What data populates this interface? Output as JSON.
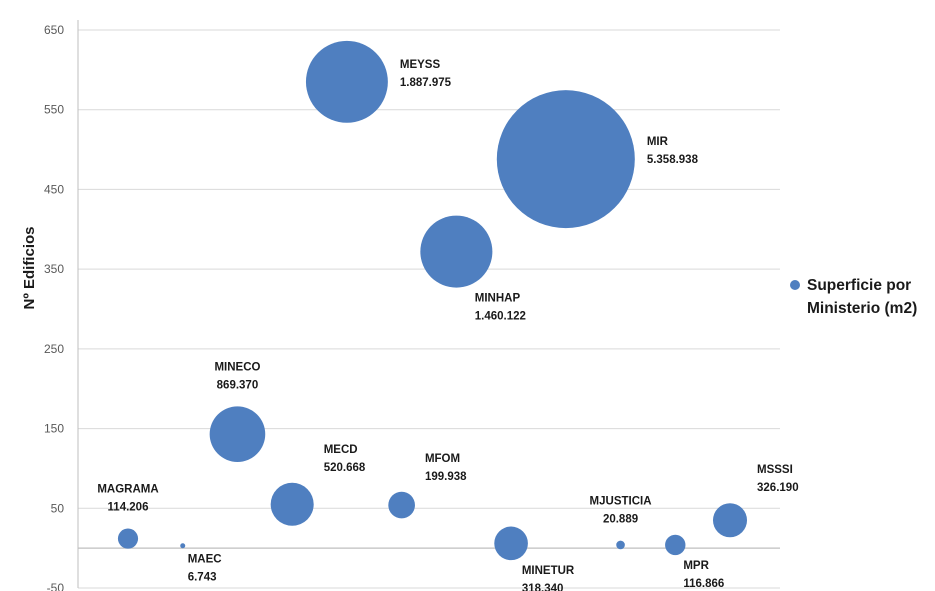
{
  "colors": {
    "bubble": "#4F7FC0",
    "grid": "#d9d9d9",
    "axis": "#bfbfbf"
  },
  "chart_data": {
    "type": "bubble",
    "title": "",
    "xlabel": "",
    "ylabel": "Nº Edificios",
    "ylim": [
      -50,
      650
    ],
    "yticks": [
      -50,
      50,
      150,
      250,
      350,
      450,
      550,
      650
    ],
    "grid": true,
    "legend_position": "right",
    "series": [
      {
        "name": "Superficie por Ministerio (m2)",
        "points": [
          {
            "label": "MAGRAMA",
            "value_label": "114.206",
            "x": 1,
            "y": 12,
            "size": 114206,
            "label_side": "above"
          },
          {
            "label": "MAEC",
            "value_label": "6.743",
            "x": 2,
            "y": 3,
            "size": 6743,
            "label_side": "below-right"
          },
          {
            "label": "MINECO",
            "value_label": "869.370",
            "x": 3,
            "y": 143,
            "size": 869370,
            "label_side": "above"
          },
          {
            "label": "MECD",
            "value_label": "520.668",
            "x": 4,
            "y": 55,
            "size": 520668,
            "label_side": "above-right"
          },
          {
            "label": "MEYSS",
            "value_label": "1.887.975",
            "x": 5,
            "y": 585,
            "size": 1887975,
            "label_side": "right"
          },
          {
            "label": "MFOM",
            "value_label": "199.938",
            "x": 6,
            "y": 54,
            "size": 199938,
            "label_side": "above-right"
          },
          {
            "label": "MINHAP",
            "value_label": "1.460.122",
            "x": 7,
            "y": 372,
            "size": 1460122,
            "label_side": "below-right"
          },
          {
            "label": "MINETUR",
            "value_label": "318.340",
            "x": 8,
            "y": 6,
            "size": 318340,
            "label_side": "below-right"
          },
          {
            "label": "MIR",
            "value_label": "5.358.938",
            "x": 9,
            "y": 488,
            "size": 5358938,
            "label_side": "right"
          },
          {
            "label": "MJUSTICIA",
            "value_label": "20.889",
            "x": 10,
            "y": 4,
            "size": 20889,
            "label_side": "above"
          },
          {
            "label": "MPR",
            "value_label": "116.866",
            "x": 11,
            "y": 4,
            "size": 116866,
            "label_side": "below-right"
          },
          {
            "label": "MSSSI",
            "value_label": "326.190",
            "x": 12,
            "y": 35,
            "size": 326190,
            "label_side": "above-right"
          }
        ]
      }
    ]
  }
}
